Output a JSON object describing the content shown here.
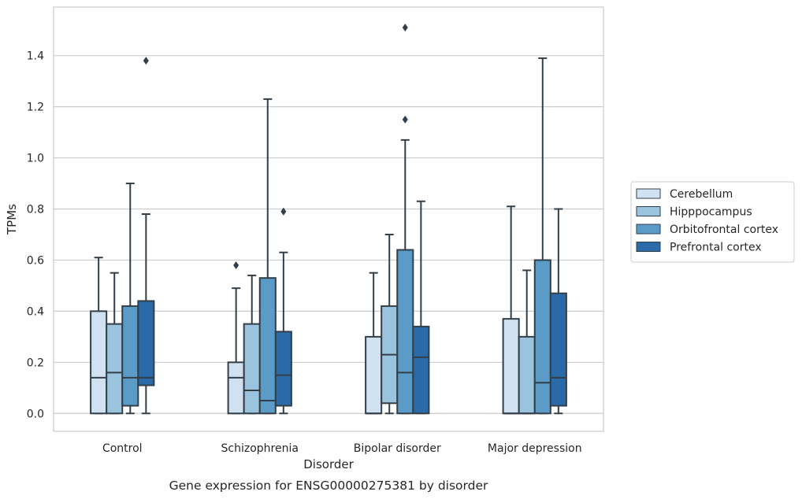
{
  "chart_data": {
    "type": "boxplot",
    "caption": "Gene expression for ENSG00000275381 by disorder",
    "xlabel": "Disorder",
    "ylabel": "TPMs",
    "ylim": [
      -0.07,
      1.59
    ],
    "yticks": [
      "0.0",
      "0.2",
      "0.4",
      "0.6",
      "0.8",
      "1.0",
      "1.2",
      "1.4"
    ],
    "grid": "horizontal",
    "legend_position": "right",
    "categories": [
      "Control",
      "Schizophrenia",
      "Bipolar disorder",
      "Major depression"
    ],
    "series": [
      {
        "name": "Cerebellum",
        "color": "#d0e1f2",
        "boxes": [
          {
            "whisker_low": 0.0,
            "q1": 0.0,
            "median": 0.14,
            "q3": 0.4,
            "whisker_high": 0.61,
            "outliers": []
          },
          {
            "whisker_low": 0.0,
            "q1": 0.0,
            "median": 0.14,
            "q3": 0.2,
            "whisker_high": 0.49,
            "outliers": [
              0.58
            ]
          },
          {
            "whisker_low": 0.0,
            "q1": 0.0,
            "median": 0.0,
            "q3": 0.3,
            "whisker_high": 0.55,
            "outliers": []
          },
          {
            "whisker_low": 0.0,
            "q1": 0.0,
            "median": 0.0,
            "q3": 0.37,
            "whisker_high": 0.81,
            "outliers": []
          }
        ]
      },
      {
        "name": "Hipppocampus",
        "color": "#9ac4dd",
        "boxes": [
          {
            "whisker_low": 0.0,
            "q1": 0.0,
            "median": 0.16,
            "q3": 0.35,
            "whisker_high": 0.55,
            "outliers": []
          },
          {
            "whisker_low": 0.0,
            "q1": 0.0,
            "median": 0.09,
            "q3": 0.35,
            "whisker_high": 0.54,
            "outliers": []
          },
          {
            "whisker_low": 0.0,
            "q1": 0.04,
            "median": 0.23,
            "q3": 0.42,
            "whisker_high": 0.7,
            "outliers": []
          },
          {
            "whisker_low": 0.0,
            "q1": 0.0,
            "median": 0.0,
            "q3": 0.3,
            "whisker_high": 0.56,
            "outliers": []
          }
        ]
      },
      {
        "name": "Orbitofrontal cortex",
        "color": "#5b9bc7",
        "boxes": [
          {
            "whisker_low": 0.0,
            "q1": 0.03,
            "median": 0.14,
            "q3": 0.42,
            "whisker_high": 0.9,
            "outliers": []
          },
          {
            "whisker_low": 0.0,
            "q1": 0.0,
            "median": 0.05,
            "q3": 0.53,
            "whisker_high": 1.23,
            "outliers": []
          },
          {
            "whisker_low": 0.0,
            "q1": 0.0,
            "median": 0.16,
            "q3": 0.64,
            "whisker_high": 1.07,
            "outliers": [
              1.15,
              1.51
            ]
          },
          {
            "whisker_low": 0.0,
            "q1": 0.0,
            "median": 0.12,
            "q3": 0.6,
            "whisker_high": 1.39,
            "outliers": []
          }
        ]
      },
      {
        "name": "Prefrontal cortex",
        "color": "#2b6aa9",
        "boxes": [
          {
            "whisker_low": 0.0,
            "q1": 0.11,
            "median": 0.14,
            "q3": 0.44,
            "whisker_high": 0.78,
            "outliers": [
              1.38
            ]
          },
          {
            "whisker_low": 0.0,
            "q1": 0.03,
            "median": 0.15,
            "q3": 0.32,
            "whisker_high": 0.63,
            "outliers": [
              0.79
            ]
          },
          {
            "whisker_low": 0.0,
            "q1": 0.0,
            "median": 0.22,
            "q3": 0.34,
            "whisker_high": 0.83,
            "outliers": []
          },
          {
            "whisker_low": 0.0,
            "q1": 0.03,
            "median": 0.14,
            "q3": 0.47,
            "whisker_high": 0.8,
            "outliers": []
          }
        ]
      }
    ]
  }
}
